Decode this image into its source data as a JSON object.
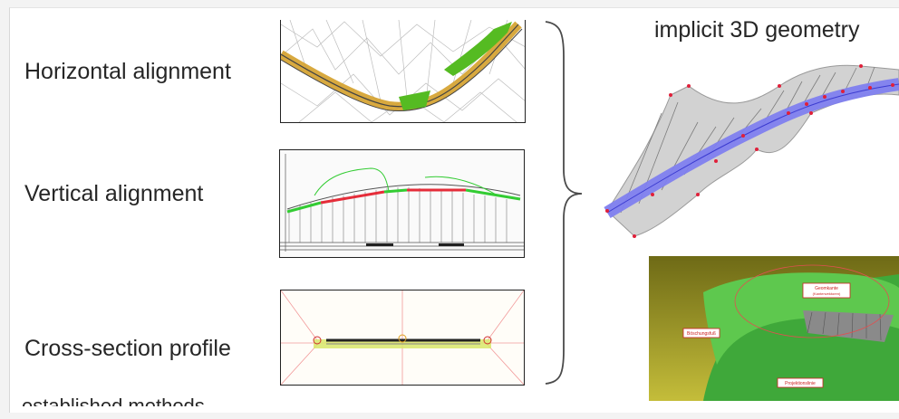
{
  "labels": {
    "horizontal": "Horizontal alignment",
    "vertical": "Vertical alignment",
    "cross_section": "Cross-section profile",
    "established": "established methods"
  },
  "right": {
    "title": "implicit 3D geometry",
    "render_tags": {
      "tag1": "Geomkante",
      "tag1b": "(Kantenvektoren)",
      "tag2": "Böschungsfuß",
      "tag3": "Projektionslinie"
    }
  },
  "colors": {
    "road_blue": "#7f7fef",
    "surface_gray": "#d0d0d0",
    "point_red": "#e0203a",
    "terrain_green": "#44bb33",
    "backdrop_yellow": "#a8a22a"
  }
}
